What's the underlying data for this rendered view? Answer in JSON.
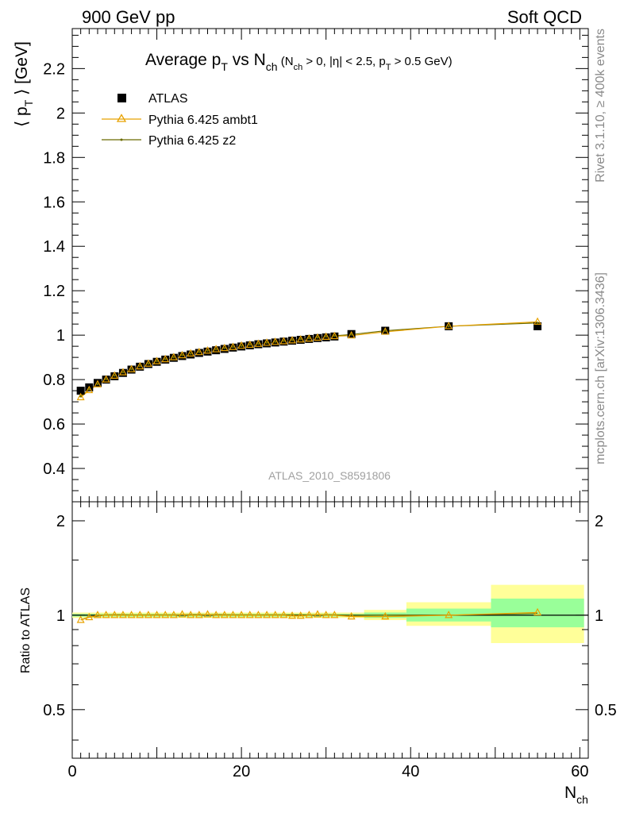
{
  "header": {
    "left": "900 GeV pp",
    "right": "Soft QCD"
  },
  "side_labels": {
    "top": "Rivet 3.1.10, ≥ 400k events",
    "bottom": "mcplots.cern.ch [arXiv:1306.3436]"
  },
  "chart_data": {
    "type": "scatter",
    "title_parts": {
      "main": "Average p",
      "main_sub": "T",
      "vs": " vs N",
      "vs_sub": "ch",
      "cuts_a": " (N",
      "cuts_a_sub": "ch",
      "cuts_b": " > 0, |η| < 2.5, p",
      "cuts_b_sub": "T",
      "cuts_c": " > 0.5 GeV)"
    },
    "ylabel_parts": {
      "a": "⟨ p",
      "sub": "T",
      "b": " ⟩ [GeV]"
    },
    "ratio_ylabel": "Ratio to ATLAS",
    "xlabel_parts": {
      "a": "N",
      "sub": "ch"
    },
    "watermark": "ATLAS_2010_S8591806",
    "xlim": [
      0,
      61
    ],
    "ylim": [
      0.25,
      2.38
    ],
    "ratio_ylim": [
      0.35,
      2.3
    ],
    "ratio_log": true,
    "x_ticks": [
      0,
      20,
      40,
      60
    ],
    "y_ticks": [
      0.4,
      0.6,
      0.8,
      1,
      1.2,
      1.4,
      1.6,
      1.8,
      2,
      2.2
    ],
    "ratio_ticks": [
      0.5,
      1,
      2
    ],
    "x_tick_labels": [
      "0",
      "20",
      "40",
      "60"
    ],
    "y_tick_labels": [
      "0.4",
      "0.6",
      "0.8",
      "1",
      "1.2",
      "1.4",
      "1.6",
      "1.8",
      "2",
      "2.2"
    ],
    "ratio_tick_labels": [
      "0.5",
      "1",
      "2"
    ],
    "legend_position": "top-left",
    "series": [
      {
        "name": "ATLAS",
        "color": "#000000",
        "marker": "square",
        "x": [
          1,
          2,
          3,
          4,
          5,
          6,
          7,
          8,
          9,
          10,
          11,
          12,
          13,
          14,
          15,
          16,
          17,
          18,
          19,
          20,
          21,
          22,
          23,
          24,
          25,
          26,
          27,
          28,
          29,
          30,
          31,
          33,
          37,
          44.5,
          55
        ],
        "y": [
          0.75,
          0.765,
          0.785,
          0.8,
          0.815,
          0.83,
          0.845,
          0.858,
          0.87,
          0.88,
          0.89,
          0.898,
          0.906,
          0.913,
          0.92,
          0.926,
          0.932,
          0.938,
          0.944,
          0.949,
          0.954,
          0.959,
          0.963,
          0.967,
          0.971,
          0.975,
          0.979,
          0.983,
          0.987,
          0.99,
          0.994,
          1.005,
          1.02,
          1.04,
          1.04
        ]
      },
      {
        "name": "Pythia 6.425 ambt1",
        "color": "#e8a200",
        "marker": "triangle",
        "x": [
          1,
          2,
          3,
          4,
          5,
          6,
          7,
          8,
          9,
          10,
          11,
          12,
          13,
          14,
          15,
          16,
          17,
          18,
          19,
          20,
          21,
          22,
          23,
          24,
          25,
          26,
          27,
          28,
          29,
          30,
          31,
          33,
          37,
          44.5,
          55
        ],
        "y": [
          0.72,
          0.752,
          0.778,
          0.8,
          0.817,
          0.832,
          0.846,
          0.859,
          0.871,
          0.882,
          0.891,
          0.9,
          0.909,
          0.917,
          0.923,
          0.93,
          0.936,
          0.941,
          0.946,
          0.952,
          0.956,
          0.96,
          0.965,
          0.969,
          0.972,
          0.976,
          0.98,
          0.984,
          0.988,
          0.992,
          0.995,
          0.998,
          1.015,
          1.04,
          1.06
        ]
      },
      {
        "name": "Pythia 6.425 z2",
        "color": "#6b6b00",
        "marker": "dot",
        "x": [
          1,
          2,
          3,
          4,
          5,
          6,
          7,
          8,
          9,
          10,
          11,
          12,
          13,
          14,
          15,
          16,
          17,
          18,
          19,
          20,
          21,
          22,
          23,
          24,
          25,
          26,
          27,
          28,
          29,
          30,
          31,
          33,
          37,
          44.5,
          55
        ],
        "y": [
          0.725,
          0.755,
          0.78,
          0.802,
          0.818,
          0.833,
          0.847,
          0.86,
          0.872,
          0.883,
          0.892,
          0.901,
          0.91,
          0.917,
          0.924,
          0.93,
          0.936,
          0.942,
          0.947,
          0.952,
          0.957,
          0.961,
          0.966,
          0.97,
          0.974,
          0.978,
          0.982,
          0.986,
          0.99,
          0.994,
          0.997,
          1.003,
          1.02,
          1.04,
          1.055
        ]
      }
    ],
    "ratio_series": [
      {
        "name": "Pythia 6.425 ambt1",
        "x": [
          1,
          2,
          3,
          4,
          5,
          6,
          7,
          8,
          9,
          10,
          11,
          12,
          13,
          14,
          15,
          16,
          17,
          18,
          19,
          20,
          21,
          22,
          23,
          24,
          25,
          26,
          27,
          28,
          29,
          30,
          31,
          33,
          37,
          44.5,
          55
        ],
        "y": [
          0.965,
          0.985,
          1.0,
          1.0,
          1.0,
          1.0,
          1.0,
          1.0,
          1.0,
          1.0,
          1.0,
          1.0,
          1.005,
          1.0,
          1.0,
          1.005,
          1.0,
          1.0,
          1.0,
          1.0,
          1.0,
          1.0,
          1.0,
          1.0,
          1.0,
          0.995,
          0.995,
          1.0,
          1.005,
          1.0,
          1.0,
          0.99,
          0.99,
          1.0,
          1.02
        ]
      }
    ],
    "bands": [
      {
        "x0": 0,
        "x1": 34.5,
        "inner": [
          0.99,
          1.01
        ],
        "outer": [
          0.98,
          1.02
        ]
      },
      {
        "x0": 34.5,
        "x1": 39.5,
        "inner": [
          0.98,
          1.02
        ],
        "outer": [
          0.965,
          1.04
        ]
      },
      {
        "x0": 39.5,
        "x1": 49.5,
        "inner": [
          0.955,
          1.05
        ],
        "outer": [
          0.925,
          1.1
        ]
      },
      {
        "x0": 49.5,
        "x1": 60.5,
        "inner": [
          0.915,
          1.13
        ],
        "outer": [
          0.815,
          1.25
        ]
      }
    ],
    "band_colors": {
      "inner": "#99ff99",
      "outer": "#ffff99"
    }
  }
}
